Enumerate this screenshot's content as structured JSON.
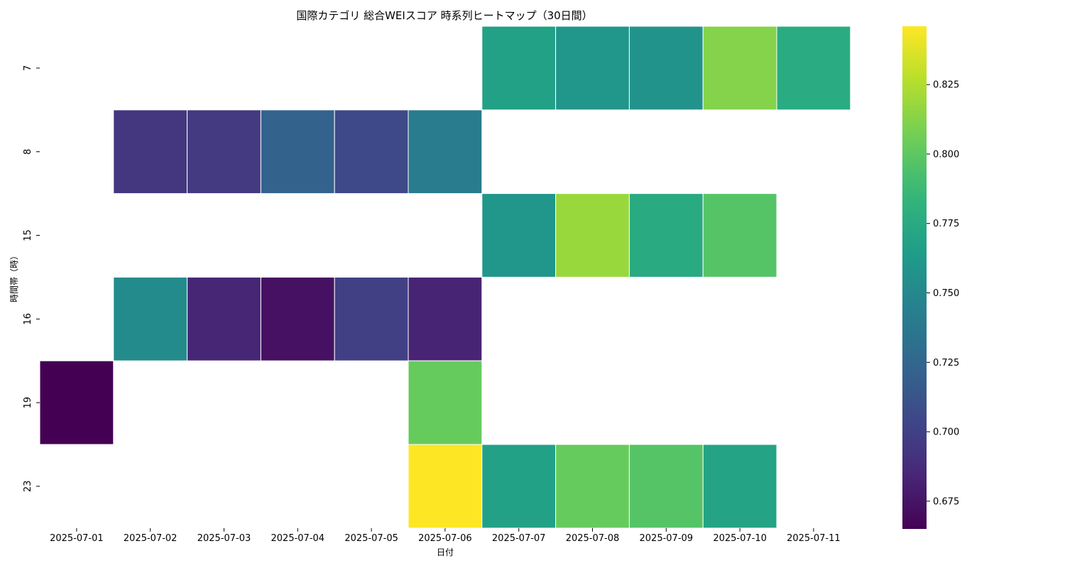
{
  "chart_data": {
    "type": "heatmap",
    "title": "国際カテゴリ 総合WEIスコア 時系列ヒートマップ（30日間）",
    "xlabel": "日付",
    "ylabel": "時間帯（時）",
    "x": [
      "2025-07-01",
      "2025-07-02",
      "2025-07-03",
      "2025-07-04",
      "2025-07-05",
      "2025-07-06",
      "2025-07-07",
      "2025-07-08",
      "2025-07-09",
      "2025-07-10",
      "2025-07-11"
    ],
    "y": [
      "7",
      "8",
      "15",
      "16",
      "19",
      "23"
    ],
    "values": [
      [
        null,
        null,
        null,
        null,
        null,
        null,
        0.768,
        0.76,
        0.758,
        0.812,
        0.776
      ],
      [
        null,
        0.694,
        0.696,
        0.722,
        0.705,
        0.74,
        null,
        null,
        null,
        null,
        null
      ],
      [
        null,
        null,
        null,
        null,
        null,
        null,
        0.76,
        0.818,
        0.775,
        0.797,
        null
      ],
      [
        null,
        0.752,
        0.684,
        0.673,
        0.7,
        0.683,
        null,
        null,
        null,
        null,
        null
      ],
      [
        0.665,
        null,
        null,
        null,
        null,
        0.803,
        null,
        null,
        null,
        null,
        null
      ],
      [
        null,
        null,
        null,
        null,
        null,
        0.846,
        0.768,
        0.803,
        0.797,
        0.77,
        null
      ]
    ],
    "colorscale": "viridis",
    "colorbar": {
      "range": [
        0.665,
        0.846
      ],
      "ticks": [
        0.675,
        0.7,
        0.725,
        0.75,
        0.775,
        0.8,
        0.825
      ]
    },
    "grid": false
  }
}
